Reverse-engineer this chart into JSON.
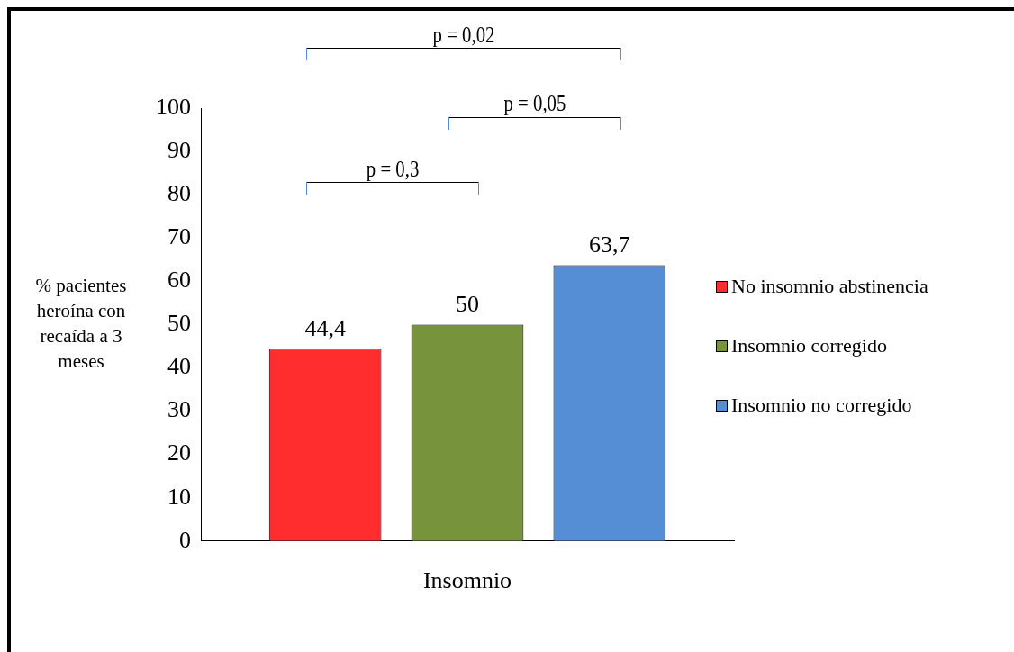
{
  "chart_data": {
    "type": "bar",
    "categories": [
      "Insomnio"
    ],
    "ylabel": "% pacientes heroína con recaída a 3 meses",
    "series": [
      {
        "name": "No insomnio abstinencia",
        "color": "#ff2d2d",
        "values": [
          44.4
        ],
        "value_labels": [
          "44,4"
        ]
      },
      {
        "name": "Insomnio corregido",
        "color": "#77933c",
        "values": [
          50
        ],
        "value_labels": [
          "50"
        ]
      },
      {
        "name": "Insomnio no corregido",
        "color": "#558ed5",
        "values": [
          63.7
        ],
        "value_labels": [
          "63,7"
        ]
      }
    ],
    "ylim": [
      0,
      100
    ],
    "yticks": [
      0,
      10,
      20,
      30,
      40,
      50,
      60,
      70,
      80,
      90,
      100
    ],
    "legend": "right",
    "annotations": [
      "p = 0,3",
      "p = 0,05",
      "p = 0,02"
    ]
  }
}
